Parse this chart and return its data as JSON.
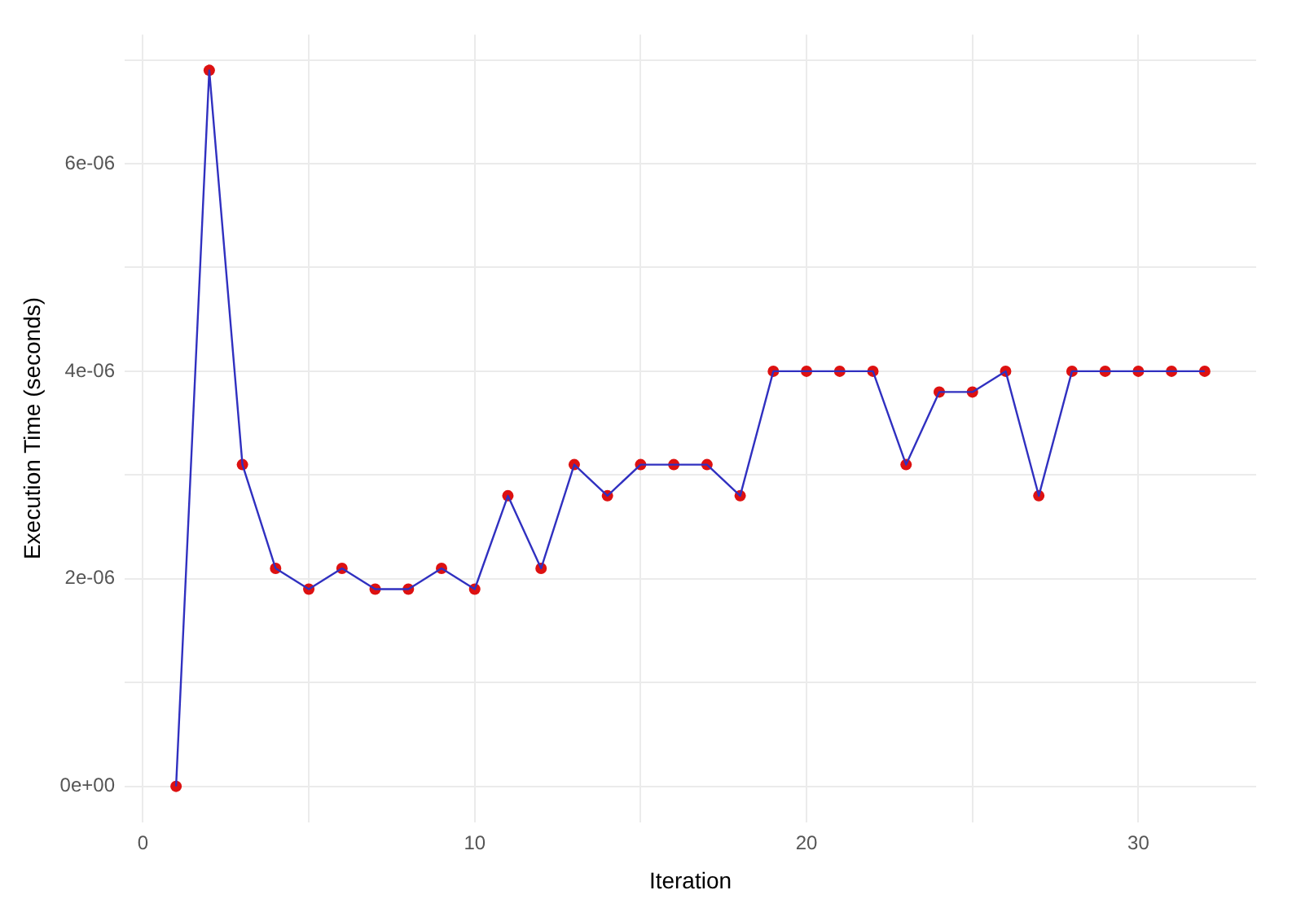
{
  "chart_data": {
    "type": "line",
    "xlabel": "Iteration",
    "ylabel": "Execution Time (seconds)",
    "x": [
      1,
      2,
      3,
      4,
      5,
      6,
      7,
      8,
      9,
      10,
      11,
      12,
      13,
      14,
      15,
      16,
      17,
      18,
      19,
      20,
      21,
      22,
      23,
      24,
      25,
      26,
      27,
      28,
      29,
      30,
      31,
      32
    ],
    "series": [
      {
        "color": "#3030c0",
        "marker": "none",
        "values": [
          0,
          6.9e-06,
          3.1e-06,
          2.1e-06,
          1.9e-06,
          2.1e-06,
          1.9e-06,
          1.9e-06,
          2.1e-06,
          1.9e-06,
          2.8e-06,
          2.1e-06,
          3.1e-06,
          2.8e-06,
          3.1e-06,
          3.1e-06,
          3.1e-06,
          2.8e-06,
          4e-06,
          4e-06,
          4e-06,
          4e-06,
          3.1e-06,
          3.8e-06,
          3.8e-06,
          4e-06,
          2.8e-06,
          4e-06,
          4e-06,
          4e-06,
          4e-06,
          4e-06
        ]
      },
      {
        "type": "scatter",
        "color": "#dd1111",
        "marker": "circle",
        "values": [
          0,
          6.9e-06,
          3.1e-06,
          2.1e-06,
          1.9e-06,
          2.1e-06,
          1.9e-06,
          1.9e-06,
          2.1e-06,
          1.9e-06,
          2.8e-06,
          2.1e-06,
          3.1e-06,
          2.8e-06,
          3.1e-06,
          3.1e-06,
          3.1e-06,
          2.8e-06,
          4e-06,
          4e-06,
          4e-06,
          4e-06,
          3.1e-06,
          3.8e-06,
          3.8e-06,
          4e-06,
          2.8e-06,
          4e-06,
          4e-06,
          4e-06,
          4e-06,
          4e-06
        ]
      }
    ],
    "xlim": [
      -0.55,
      33.55
    ],
    "xticks": [
      0,
      {
        "value": 5,
        "label": null
      },
      10,
      {
        "value": 15,
        "label": null
      },
      20,
      {
        "value": 25,
        "label": null
      },
      30
    ],
    "ylim": [
      -3.45e-07,
      7.245e-06
    ],
    "yticks": [
      {
        "value": 0,
        "label": "0e+00"
      },
      {
        "value": 1e-06,
        "label": null
      },
      {
        "value": 2e-06,
        "label": "2e-06"
      },
      {
        "value": 3e-06,
        "label": null
      },
      {
        "value": 4e-06,
        "label": "4e-06"
      },
      {
        "value": 5e-06,
        "label": null
      },
      {
        "value": 6e-06,
        "label": "6e-06"
      },
      {
        "value": 7e-06,
        "label": null
      }
    ],
    "grid": true,
    "legend": false
  }
}
